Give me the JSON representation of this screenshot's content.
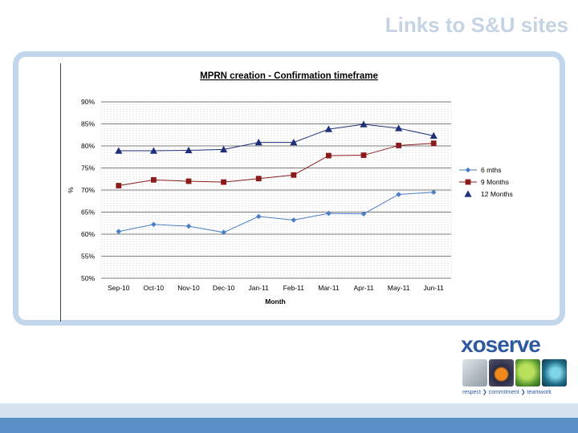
{
  "slide": {
    "title": "Links to S&U sites"
  },
  "logo": {
    "word": "xoserve",
    "tagline": "respect ❯ commitment ❯ teamwork"
  },
  "colors": {
    "title": "#c5d3e3",
    "frame": "#c2d6ec",
    "series_6": "#4a7ec7",
    "series_9": "#8b1a1a",
    "series_12": "#1f2f7a",
    "footer_light": "#d6e4f2",
    "footer_dark": "#5b8fc8"
  },
  "chart_data": {
    "type": "line",
    "title": "MPRN creation - Confirmation timeframe",
    "xlabel": "Month",
    "ylabel": "%",
    "categories": [
      "Sep-10",
      "Oct-10",
      "Nov-10",
      "Dec-10",
      "Jan-11",
      "Feb-11",
      "Mar-11",
      "Apr-11",
      "May-11",
      "Jun-11"
    ],
    "yticks": [
      "90%",
      "85%",
      "80%",
      "75%",
      "70%",
      "65%",
      "60%",
      "55%",
      "50%"
    ],
    "ylim": [
      50,
      90
    ],
    "grid": true,
    "legend_position": "right",
    "series": [
      {
        "name": "6 mths",
        "marker": "diamond",
        "color": "#4a7ec7",
        "values": [
          60.6,
          62.2,
          61.8,
          60.4,
          64.0,
          63.2,
          64.7,
          64.6,
          69.0,
          69.5
        ]
      },
      {
        "name": "9 Months",
        "marker": "square",
        "color": "#8b1a1a",
        "values": [
          71.0,
          72.3,
          72.0,
          71.8,
          72.6,
          73.4,
          77.8,
          77.9,
          80.1,
          80.6
        ]
      },
      {
        "name": "12 Months",
        "marker": "triangle",
        "color": "#1f2f7a",
        "values": [
          78.9,
          78.9,
          79.0,
          79.2,
          80.8,
          80.8,
          83.8,
          84.9,
          84.0,
          82.3
        ]
      }
    ]
  }
}
